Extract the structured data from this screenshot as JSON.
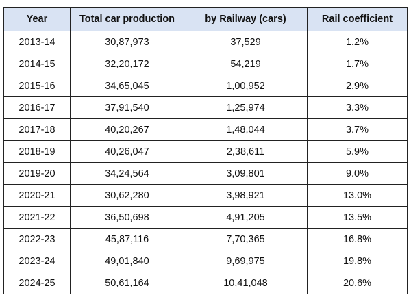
{
  "table": {
    "headers": [
      "Year",
      "Total car production",
      "by Railway (cars)",
      "Rail coefficient"
    ],
    "rows": [
      [
        "2013-14",
        "30,87,973",
        "37,529",
        "1.2%"
      ],
      [
        "2014-15",
        "32,20,172",
        "54,219",
        "1.7%"
      ],
      [
        "2015-16",
        "34,65,045",
        "1,00,952",
        "2.9%"
      ],
      [
        "2016-17",
        "37,91,540",
        "1,25,974",
        "3.3%"
      ],
      [
        "2017-18",
        "40,20,267",
        "1,48,044",
        "3.7%"
      ],
      [
        "2018-19",
        "40,26,047",
        "2,38,611",
        "5.9%"
      ],
      [
        "2019-20",
        "34,24,564",
        "3,09,801",
        "9.0%"
      ],
      [
        "2020-21",
        "30,62,280",
        "3,98,921",
        "13.0%"
      ],
      [
        "2021-22",
        "36,50,698",
        "4,91,205",
        "13.5%"
      ],
      [
        "2022-23",
        "45,87,116",
        "7,70,365",
        "16.8%"
      ],
      [
        "2023-24",
        "49,01,840",
        "9,69,975",
        "19.8%"
      ],
      [
        "2024-25",
        "50,61,164",
        "10,41,048",
        "20.6%"
      ]
    ]
  },
  "colors": {
    "header_bg": "#d9e3f3",
    "border": "#222222"
  }
}
